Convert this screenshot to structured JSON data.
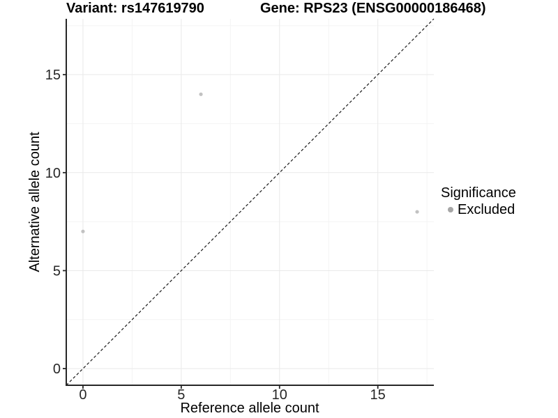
{
  "chart_data": {
    "type": "scatter",
    "title_left": "Variant: rs147619790",
    "title_right": "Gene: RPS23 (ENSG00000186468)",
    "xlabel": "Reference allele count",
    "ylabel": "Alternative allele count",
    "xlim": [
      -0.85,
      17.85
    ],
    "ylim": [
      -0.85,
      17.85
    ],
    "xticks": [
      0,
      5,
      10,
      15
    ],
    "yticks": [
      0,
      5,
      10,
      15
    ],
    "xminor": [
      2.5,
      7.5,
      12.5,
      17.5
    ],
    "yminor": [
      2.5,
      7.5,
      12.5,
      17.5
    ],
    "grid": "major-and-minor",
    "axis_line_color": "#262626",
    "grid_major_color": "#e9e9e9",
    "grid_minor_color": "#f4f4f4",
    "series": [
      {
        "name": "Excluded",
        "color": "#c2c2c2",
        "points": [
          [
            0,
            7
          ],
          [
            6,
            14
          ],
          [
            17,
            8
          ]
        ]
      }
    ],
    "reference_line": {
      "type": "identity",
      "slope": 1,
      "intercept": 0,
      "style": "dashed",
      "color": "#1a1a1a"
    },
    "legend": {
      "title": "Significance",
      "position": "right",
      "items": [
        {
          "label": "Excluded",
          "color": "#a6a6a6"
        }
      ]
    }
  }
}
